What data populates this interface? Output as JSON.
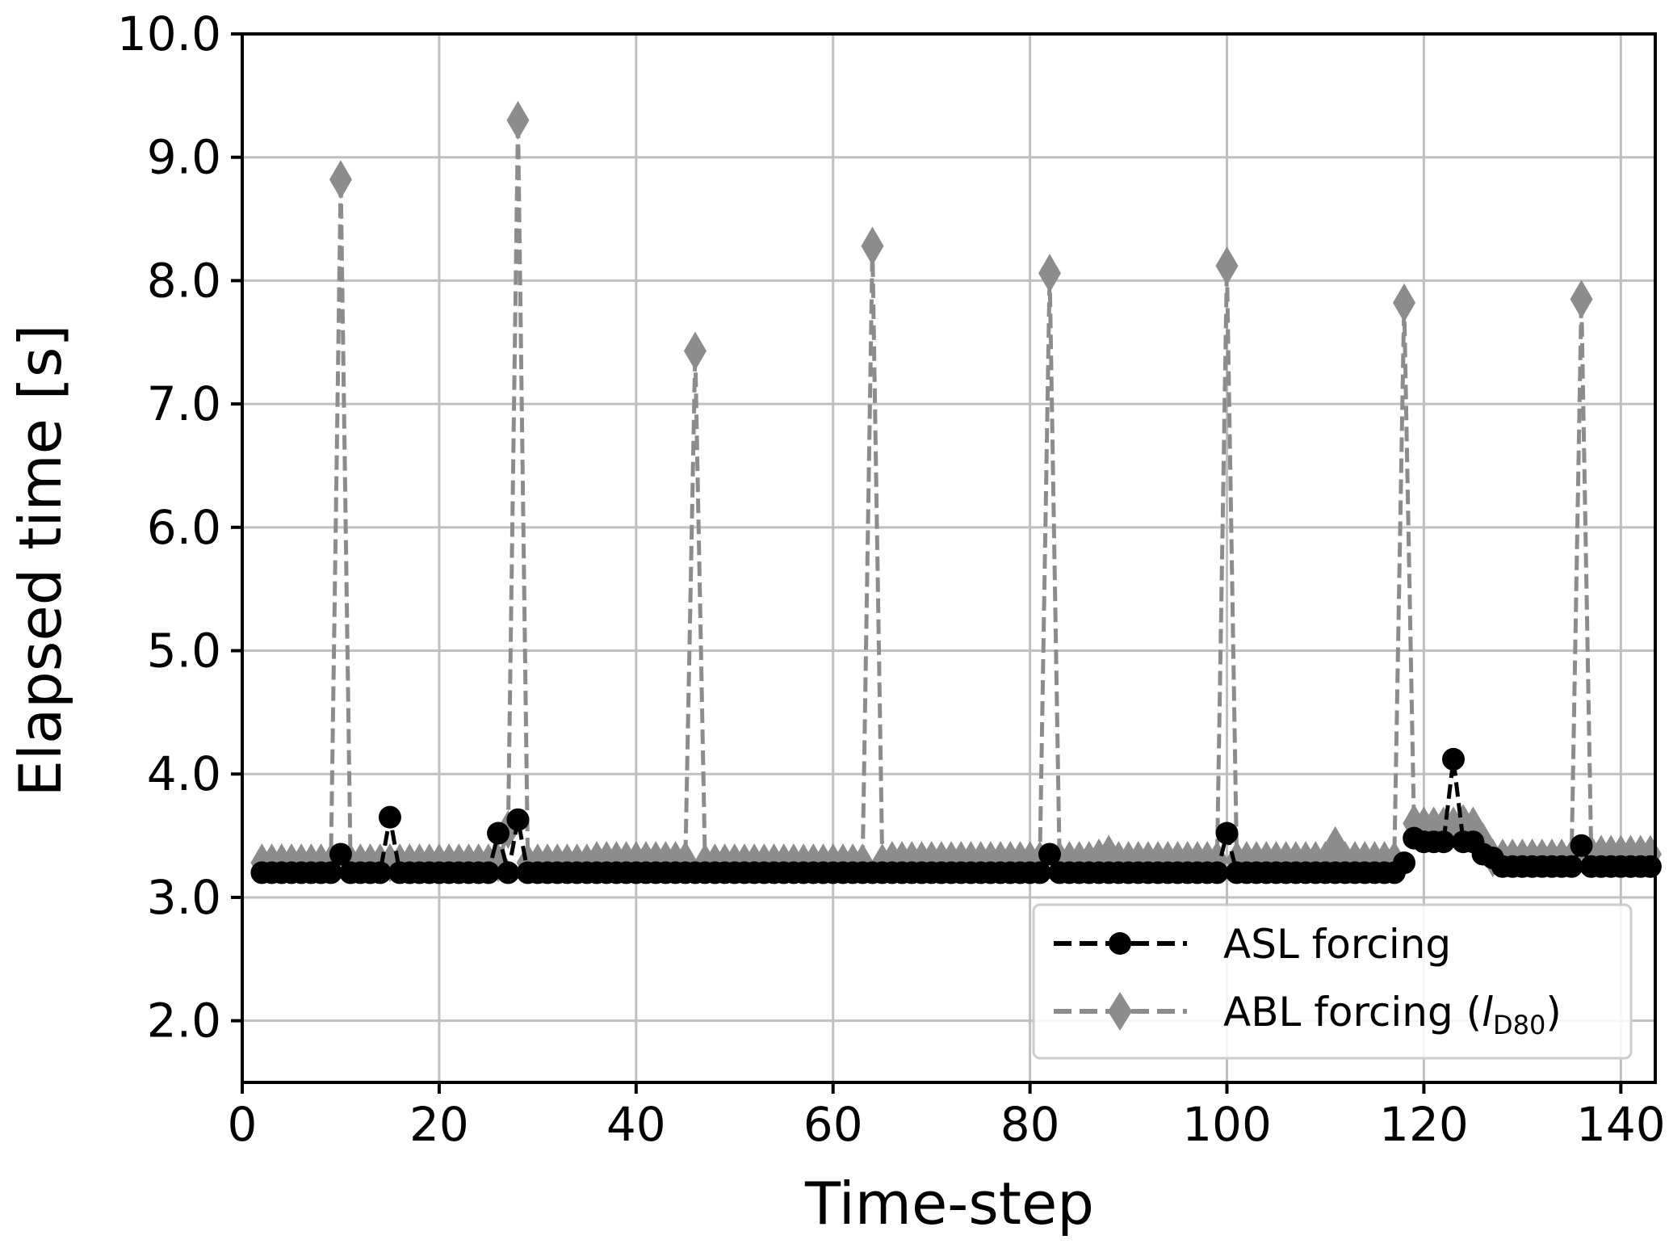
{
  "chart_data": {
    "type": "line",
    "title": "",
    "xlabel": "Time-step",
    "ylabel": "Elapsed time [s]",
    "xlim": [
      0,
      143.5
    ],
    "ylim": [
      1.5,
      10.0
    ],
    "xticks": [
      0,
      20,
      40,
      60,
      80,
      100,
      120,
      140
    ],
    "xtick_labels": [
      "0",
      "20",
      "40",
      "60",
      "80",
      "100",
      "120",
      "140"
    ],
    "yticks": [
      2.0,
      3.0,
      4.0,
      5.0,
      6.0,
      7.0,
      8.0,
      9.0,
      10.0
    ],
    "ytick_labels": [
      "2.0",
      "3.0",
      "4.0",
      "5.0",
      "6.0",
      "7.0",
      "8.0",
      "9.0",
      "10.0"
    ],
    "grid": true,
    "legend_position": "bottom-right",
    "x": [
      2,
      3,
      4,
      5,
      6,
      7,
      8,
      9,
      10,
      11,
      12,
      13,
      14,
      15,
      16,
      17,
      18,
      19,
      20,
      21,
      22,
      23,
      24,
      25,
      26,
      27,
      28,
      29,
      30,
      31,
      32,
      33,
      34,
      35,
      36,
      37,
      38,
      39,
      40,
      41,
      42,
      43,
      44,
      45,
      46,
      47,
      48,
      49,
      50,
      51,
      52,
      53,
      54,
      55,
      56,
      57,
      58,
      59,
      60,
      61,
      62,
      63,
      64,
      65,
      66,
      67,
      68,
      69,
      70,
      71,
      72,
      73,
      74,
      75,
      76,
      77,
      78,
      79,
      80,
      81,
      82,
      83,
      84,
      85,
      86,
      87,
      88,
      89,
      90,
      91,
      92,
      93,
      94,
      95,
      96,
      97,
      98,
      99,
      100,
      101,
      102,
      103,
      104,
      105,
      106,
      107,
      108,
      109,
      110,
      111,
      112,
      113,
      114,
      115,
      116,
      117,
      118,
      119,
      120,
      121,
      122,
      123,
      124,
      125,
      126,
      127,
      128,
      129,
      130,
      131,
      132,
      133,
      134,
      135,
      136,
      137,
      138,
      139,
      140,
      141,
      142,
      143
    ],
    "series": [
      {
        "name": "ASL forcing",
        "color": "#000000",
        "marker": "circle",
        "values": [
          3.2,
          3.2,
          3.2,
          3.2,
          3.2,
          3.2,
          3.2,
          3.2,
          3.35,
          3.2,
          3.2,
          3.2,
          3.2,
          3.65,
          3.2,
          3.2,
          3.2,
          3.2,
          3.2,
          3.2,
          3.2,
          3.2,
          3.2,
          3.2,
          3.52,
          3.2,
          3.63,
          3.2,
          3.2,
          3.2,
          3.2,
          3.2,
          3.2,
          3.2,
          3.2,
          3.2,
          3.2,
          3.2,
          3.2,
          3.2,
          3.2,
          3.2,
          3.2,
          3.2,
          3.2,
          3.2,
          3.2,
          3.2,
          3.2,
          3.2,
          3.2,
          3.2,
          3.2,
          3.2,
          3.2,
          3.2,
          3.2,
          3.2,
          3.2,
          3.2,
          3.2,
          3.2,
          3.2,
          3.2,
          3.2,
          3.2,
          3.2,
          3.2,
          3.2,
          3.2,
          3.2,
          3.2,
          3.2,
          3.2,
          3.2,
          3.2,
          3.2,
          3.2,
          3.2,
          3.2,
          3.35,
          3.2,
          3.2,
          3.2,
          3.2,
          3.2,
          3.2,
          3.2,
          3.2,
          3.2,
          3.2,
          3.2,
          3.2,
          3.2,
          3.2,
          3.2,
          3.2,
          3.2,
          3.52,
          3.2,
          3.2,
          3.2,
          3.2,
          3.2,
          3.2,
          3.2,
          3.2,
          3.2,
          3.2,
          3.2,
          3.2,
          3.2,
          3.2,
          3.2,
          3.2,
          3.2,
          3.28,
          3.48,
          3.45,
          3.45,
          3.45,
          4.12,
          3.45,
          3.45,
          3.35,
          3.32,
          3.25,
          3.25,
          3.25,
          3.25,
          3.25,
          3.25,
          3.25,
          3.25,
          3.42,
          3.25,
          3.25,
          3.25,
          3.25,
          3.25,
          3.25,
          3.25
        ]
      },
      {
        "name": "ABL forcing (lD80)",
        "color": "#8c8c8c",
        "marker": "diamond",
        "values": [
          3.28,
          3.28,
          3.28,
          3.28,
          3.28,
          3.28,
          3.28,
          3.28,
          8.82,
          3.28,
          3.28,
          3.28,
          3.28,
          3.28,
          3.28,
          3.28,
          3.28,
          3.28,
          3.28,
          3.28,
          3.28,
          3.28,
          3.28,
          3.28,
          3.28,
          3.55,
          9.3,
          3.28,
          3.28,
          3.28,
          3.28,
          3.28,
          3.28,
          3.28,
          3.3,
          3.3,
          3.3,
          3.3,
          3.3,
          3.3,
          3.3,
          3.3,
          3.3,
          3.3,
          7.43,
          3.28,
          3.28,
          3.28,
          3.28,
          3.28,
          3.28,
          3.28,
          3.28,
          3.28,
          3.28,
          3.28,
          3.28,
          3.28,
          3.28,
          3.28,
          3.28,
          3.28,
          8.28,
          3.28,
          3.3,
          3.3,
          3.3,
          3.3,
          3.3,
          3.3,
          3.3,
          3.3,
          3.3,
          3.3,
          3.3,
          3.3,
          3.3,
          3.3,
          3.3,
          3.3,
          8.06,
          3.3,
          3.3,
          3.3,
          3.3,
          3.32,
          3.35,
          3.3,
          3.3,
          3.3,
          3.3,
          3.3,
          3.3,
          3.3,
          3.3,
          3.3,
          3.3,
          3.3,
          8.12,
          3.3,
          3.3,
          3.3,
          3.3,
          3.3,
          3.3,
          3.3,
          3.3,
          3.3,
          3.3,
          3.42,
          3.3,
          3.3,
          3.3,
          3.3,
          3.3,
          3.3,
          7.82,
          3.6,
          3.58,
          3.58,
          3.58,
          3.58,
          3.6,
          3.58,
          3.45,
          3.32,
          3.32,
          3.32,
          3.32,
          3.32,
          3.32,
          3.32,
          3.32,
          3.32,
          7.85,
          3.35,
          3.35,
          3.35,
          3.35,
          3.35,
          3.35,
          3.35
        ]
      }
    ],
    "legend": {
      "entries": [
        {
          "label": "ASL forcing"
        },
        {
          "label_prefix": "ABL forcing (",
          "label_italic": "l",
          "label_sub": "D80",
          "label_suffix": ")"
        }
      ]
    }
  }
}
